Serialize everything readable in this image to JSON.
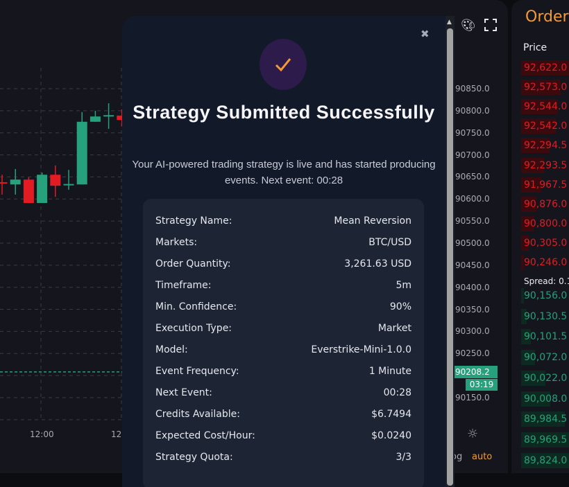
{
  "chart": {
    "price_axis": [
      "90850.0",
      "90800.0",
      "90750.0",
      "90700.0",
      "90650.0",
      "90600.0",
      "90550.0",
      "90500.0",
      "90450.0",
      "90400.0",
      "90350.0",
      "90300.0",
      "90250.0",
      "90150.0"
    ],
    "time_axis": [
      "12:00",
      "12:"
    ],
    "last_price": "90208.2",
    "countdown": "03:19",
    "bottom_controls": {
      "log": "og",
      "auto": "auto"
    },
    "up_color": "#26a17b",
    "down_color": "#e31b23",
    "candles": [
      {
        "o": 90638,
        "h": 90655,
        "l": 90610,
        "c": 90636
      },
      {
        "o": 90633,
        "h": 90668,
        "l": 90610,
        "c": 90644
      },
      {
        "o": 90644,
        "h": 90649,
        "l": 90591,
        "c": 90591
      },
      {
        "o": 90591,
        "h": 90660,
        "l": 90591,
        "c": 90655
      },
      {
        "o": 90655,
        "h": 90676,
        "l": 90605,
        "c": 90630
      },
      {
        "o": 90632,
        "h": 90666,
        "l": 90621,
        "c": 90634
      },
      {
        "o": 90633,
        "h": 90797,
        "l": 90633,
        "c": 90775
      },
      {
        "o": 90775,
        "h": 90800,
        "l": 90775,
        "c": 90787
      },
      {
        "o": 90788,
        "h": 90817,
        "l": 90759,
        "c": 90790
      },
      {
        "o": 90789,
        "h": 90803,
        "l": 90765,
        "c": 90779
      }
    ]
  },
  "modal": {
    "title": "Strategy Submitted Successfully",
    "subtitle": "Your AI-powered trading strategy is live and has started producing events. Next event: 00:28",
    "details": [
      {
        "label": "Strategy Name:",
        "value": "Mean Reversion"
      },
      {
        "label": "Markets:",
        "value": "BTC/USD"
      },
      {
        "label": "Order Quantity:",
        "value": "3,261.63 USD"
      },
      {
        "label": "Timeframe:",
        "value": "5m"
      },
      {
        "label": "Min. Confidence:",
        "value": "90%"
      },
      {
        "label": "Execution Type:",
        "value": "Market"
      },
      {
        "label": "Model:",
        "value": "Everstrike-Mini-1.0.0"
      },
      {
        "label": "Event Frequency:",
        "value": "1 Minute"
      },
      {
        "label": "Next Event:",
        "value": "00:28"
      },
      {
        "label": "Credits Available:",
        "value": "$6.7494"
      },
      {
        "label": "Expected Cost/Hour:",
        "value": "$0.0240"
      },
      {
        "label": "Strategy Quota:",
        "value": "3/3"
      }
    ]
  },
  "order_book": {
    "title": "Order",
    "price_header": "Price",
    "spread": "Spread: 0.1",
    "asks": [
      {
        "price": "92,622.0",
        "depth": 1.0
      },
      {
        "price": "92,573.0",
        "depth": 0.82
      },
      {
        "price": "92,544.0",
        "depth": 0.76
      },
      {
        "price": "92,542.0",
        "depth": 0.72
      },
      {
        "price": "92,294.5",
        "depth": 0.58
      },
      {
        "price": "92,293.5",
        "depth": 0.47
      },
      {
        "price": "91,967.5",
        "depth": 0.42
      },
      {
        "price": "90,876.0",
        "depth": 0.31
      },
      {
        "price": "90,800.0",
        "depth": 0.26
      },
      {
        "price": "90,305.0",
        "depth": 0.16
      },
      {
        "price": "90,246.0",
        "depth": 0.05
      }
    ],
    "bids": [
      {
        "price": "90,156.0",
        "depth": 0.05
      },
      {
        "price": "90,130.5",
        "depth": 0.12
      },
      {
        "price": "90,101.5",
        "depth": 0.2
      },
      {
        "price": "90,072.0",
        "depth": 0.28
      },
      {
        "price": "90,022.0",
        "depth": 0.5
      },
      {
        "price": "90,008.0",
        "depth": 0.6
      },
      {
        "price": "89,984.5",
        "depth": 0.9
      },
      {
        "price": "89,969.5",
        "depth": 1.0
      },
      {
        "price": "89,824.0",
        "depth": 1.0
      }
    ]
  }
}
